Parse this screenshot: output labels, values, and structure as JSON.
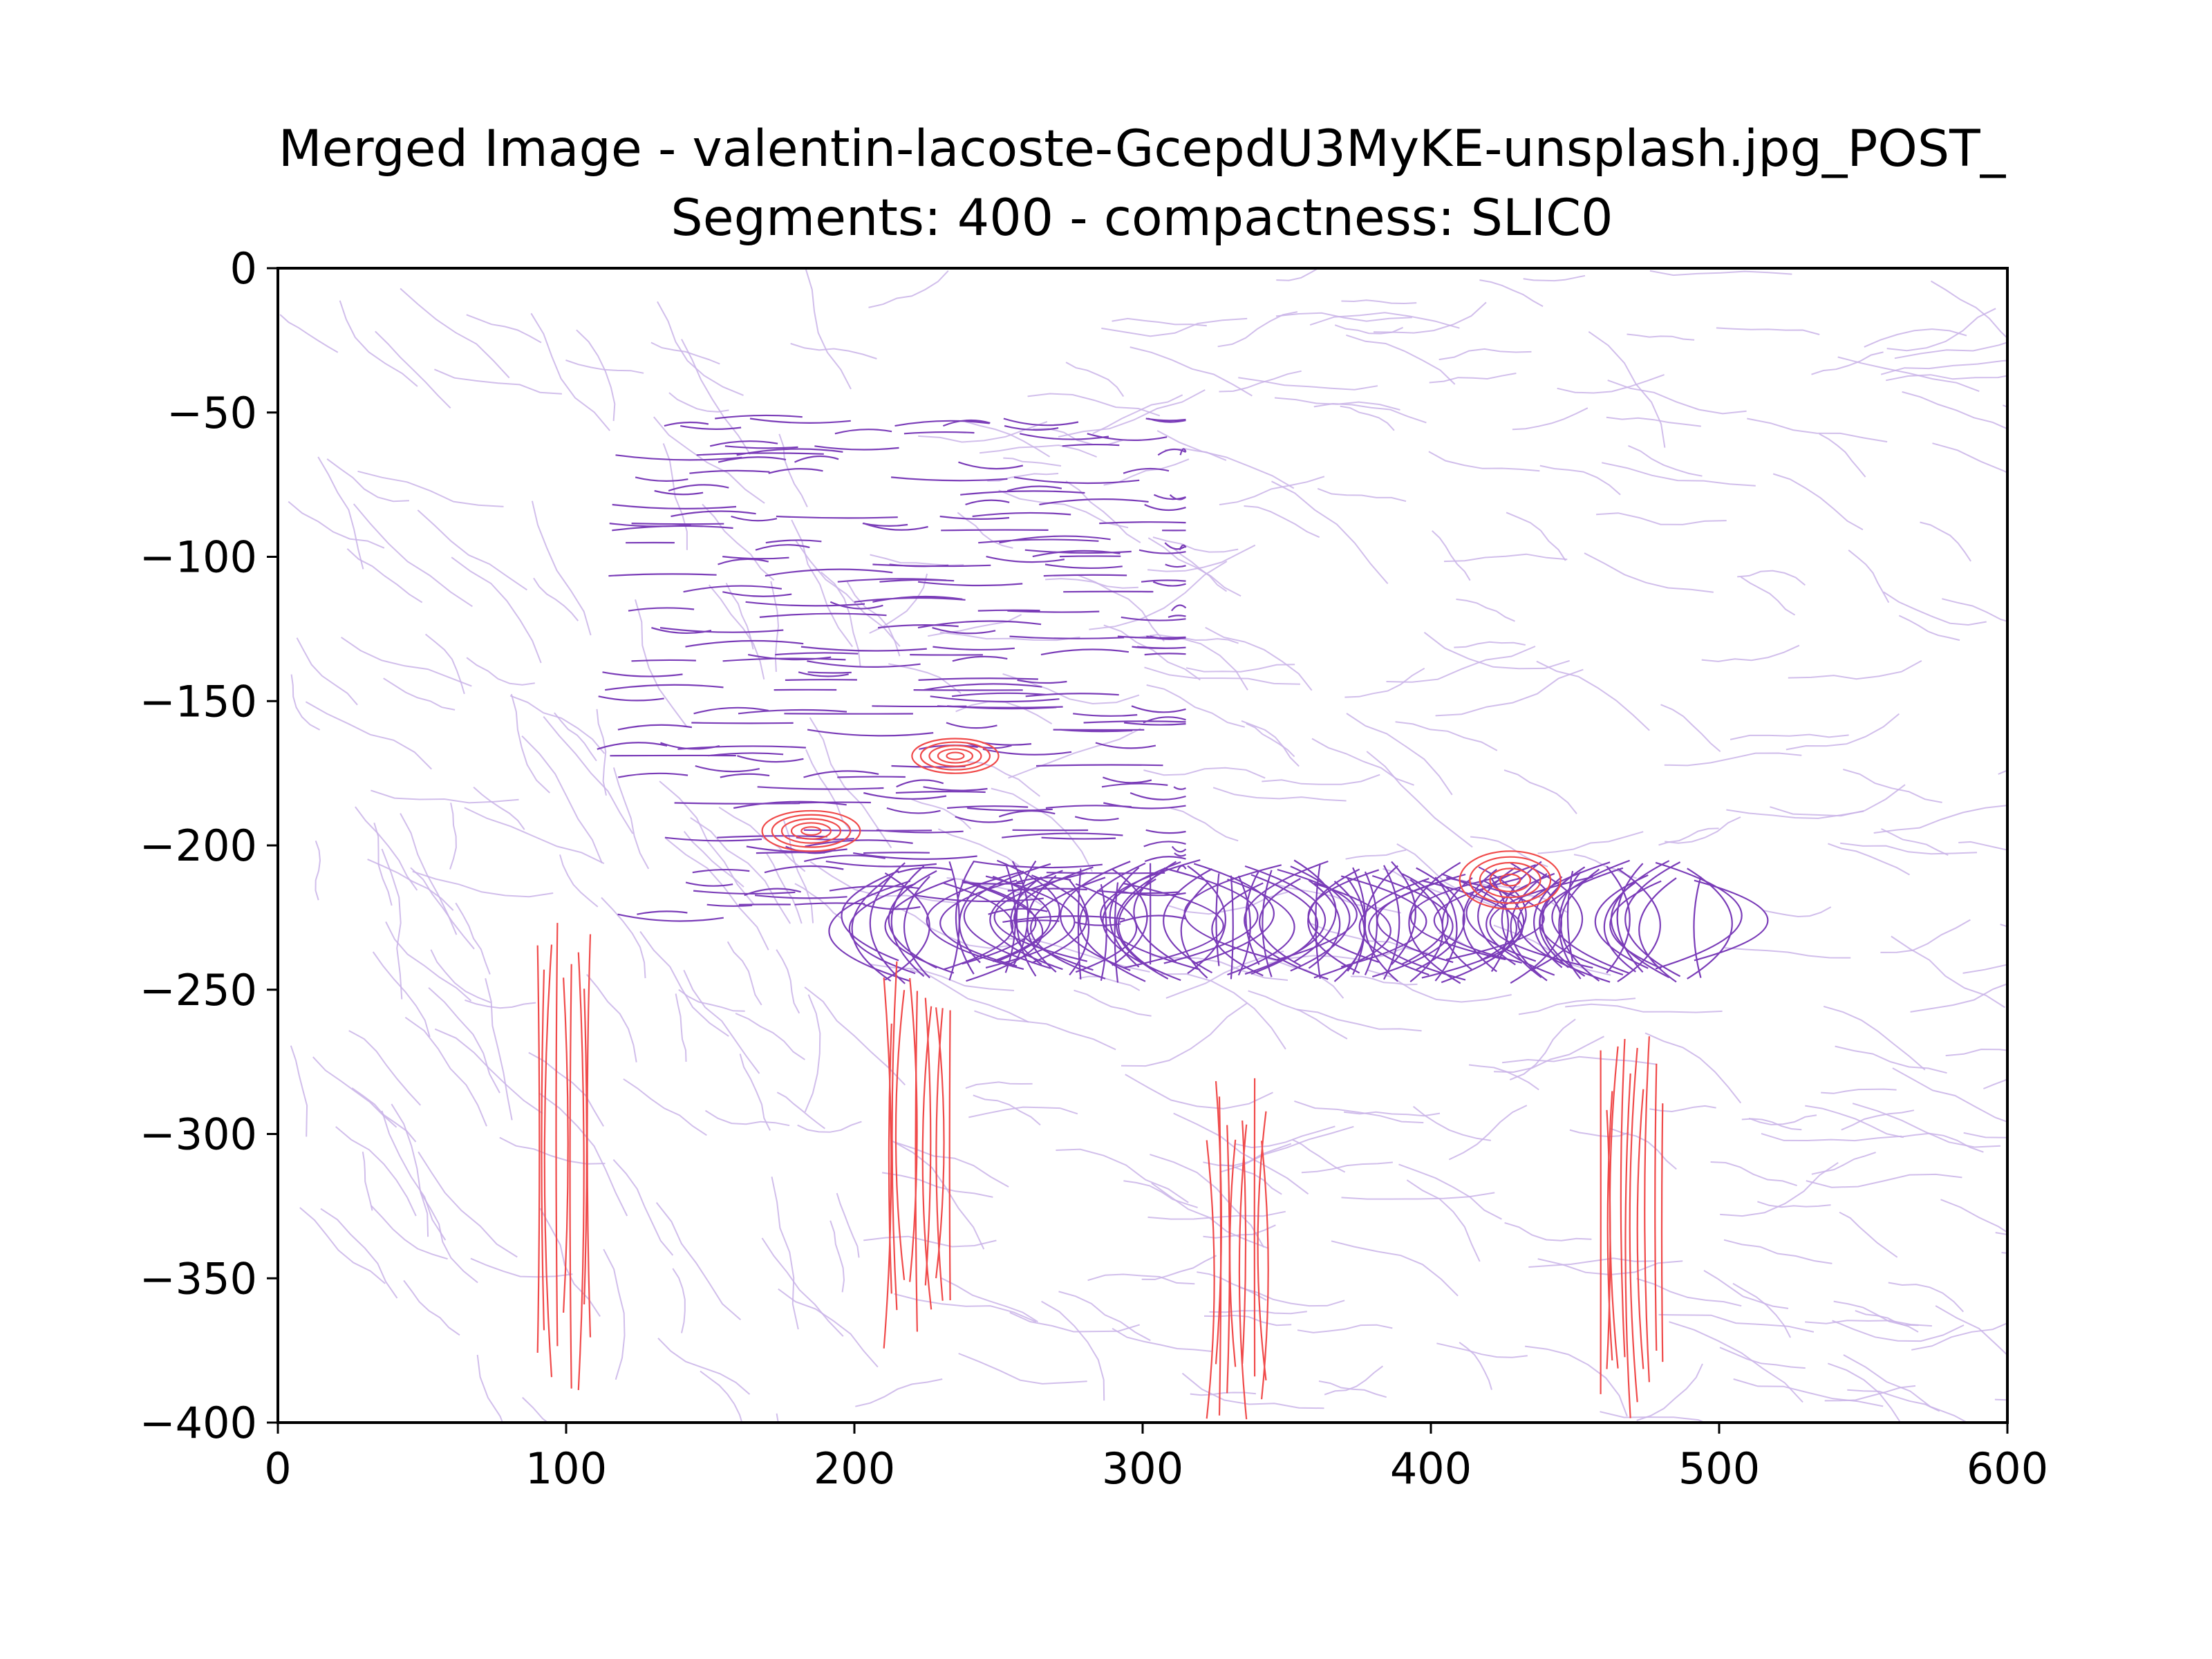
{
  "chart_data": {
    "type": "streamplot",
    "title_lines": [
      "Merged Image - valentin-lacoste-GcepdU3MyKE-unsplash.jpg_POST_",
      "Segments: 400 - compactness: SLIC0"
    ],
    "xlabel": "",
    "ylabel": "",
    "xlim": [
      0,
      600
    ],
    "ylim": [
      -400,
      0
    ],
    "x_ticks": [
      0,
      100,
      200,
      300,
      400,
      500,
      600
    ],
    "y_ticks": [
      0,
      -50,
      -100,
      -150,
      -200,
      -250,
      -300,
      -350,
      -400
    ],
    "x_tick_labels": [
      "0",
      "100",
      "200",
      "300",
      "400",
      "500",
      "600"
    ],
    "y_tick_labels": [
      "0",
      "−50",
      "−100",
      "−150",
      "−200",
      "−250",
      "−300",
      "−350",
      "−400"
    ],
    "grid": false,
    "legend": "none",
    "colors": {
      "background_lines": "#c9b3e8",
      "object_lines": "#7a3cb8",
      "highlight_lines": "#f04a4a"
    },
    "regions": [
      {
        "name": "chair-backrest",
        "x": [
          110,
          315
        ],
        "y": [
          -228,
          -50
        ],
        "color_role": "object",
        "direction": "horizontal"
      },
      {
        "name": "chair-seat",
        "x": [
          210,
          495
        ],
        "y": [
          -248,
          -205
        ],
        "color_role": "object",
        "direction": "vertical"
      },
      {
        "name": "leg-left-front",
        "x": [
          90,
          110
        ],
        "y": [
          -390,
          -225
        ],
        "color_role": "highlight",
        "direction": "vertical"
      },
      {
        "name": "leg-mid-left",
        "x": [
          210,
          235
        ],
        "y": [
          -375,
          -240
        ],
        "color_role": "highlight",
        "direction": "vertical"
      },
      {
        "name": "leg-mid-right",
        "x": [
          322,
          345
        ],
        "y": [
          -400,
          -280
        ],
        "color_role": "highlight",
        "direction": "vertical"
      },
      {
        "name": "leg-right",
        "x": [
          458,
          482
        ],
        "y": [
          -400,
          -265
        ],
        "color_role": "highlight",
        "direction": "vertical"
      },
      {
        "name": "spot-1",
        "x": [
          168,
          202
        ],
        "y": [
          -202,
          -188
        ],
        "color_role": "highlight",
        "direction": "vortex"
      },
      {
        "name": "spot-2",
        "x": [
          220,
          250
        ],
        "y": [
          -175,
          -163
        ],
        "color_role": "highlight",
        "direction": "vortex"
      },
      {
        "name": "spot-3",
        "x": [
          410,
          445
        ],
        "y": [
          -222,
          -202
        ],
        "color_role": "highlight",
        "direction": "vortex"
      }
    ]
  }
}
